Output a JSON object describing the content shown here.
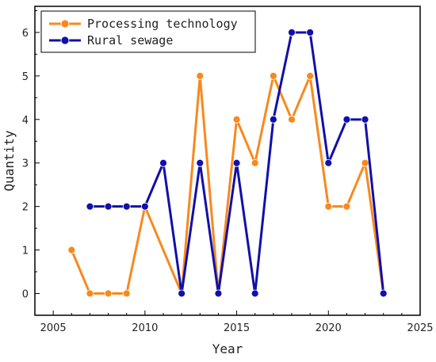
{
  "chart_data": {
    "type": "line",
    "title": "",
    "xlabel": "Year",
    "ylabel": "Quantity",
    "xlim": [
      2004,
      2025
    ],
    "ylim": [
      -0.5,
      6.6
    ],
    "xticks": [
      2005,
      2010,
      2015,
      2020,
      2025
    ],
    "yticks": [
      0,
      1,
      2,
      3,
      4,
      5,
      6
    ],
    "grid": false,
    "legend": "top-left",
    "series": [
      {
        "name": "Processing technology",
        "color": "#f7891f",
        "points": [
          [
            2006,
            1
          ],
          [
            2007,
            0
          ],
          [
            2008,
            0
          ],
          [
            2009,
            0
          ],
          [
            2010,
            2
          ],
          [
            2012,
            0
          ],
          [
            2013,
            5
          ],
          [
            2014,
            0
          ],
          [
            2015,
            4
          ],
          [
            2016,
            3
          ],
          [
            2017,
            5
          ],
          [
            2018,
            4
          ],
          [
            2019,
            5
          ],
          [
            2020,
            2
          ],
          [
            2021,
            2
          ],
          [
            2022,
            3
          ],
          [
            2023,
            0
          ]
        ]
      },
      {
        "name": "Rural sewage",
        "color": "#1010aa",
        "points": [
          [
            2007,
            2
          ],
          [
            2008,
            2
          ],
          [
            2009,
            2
          ],
          [
            2010,
            2
          ],
          [
            2011,
            3
          ],
          [
            2012,
            0
          ],
          [
            2013,
            3
          ],
          [
            2014,
            0
          ],
          [
            2015,
            3
          ],
          [
            2016,
            0
          ],
          [
            2017,
            4
          ],
          [
            2018,
            6
          ],
          [
            2019,
            6
          ],
          [
            2020,
            3
          ],
          [
            2021,
            4
          ],
          [
            2022,
            4
          ],
          [
            2023,
            0
          ]
        ]
      }
    ]
  }
}
